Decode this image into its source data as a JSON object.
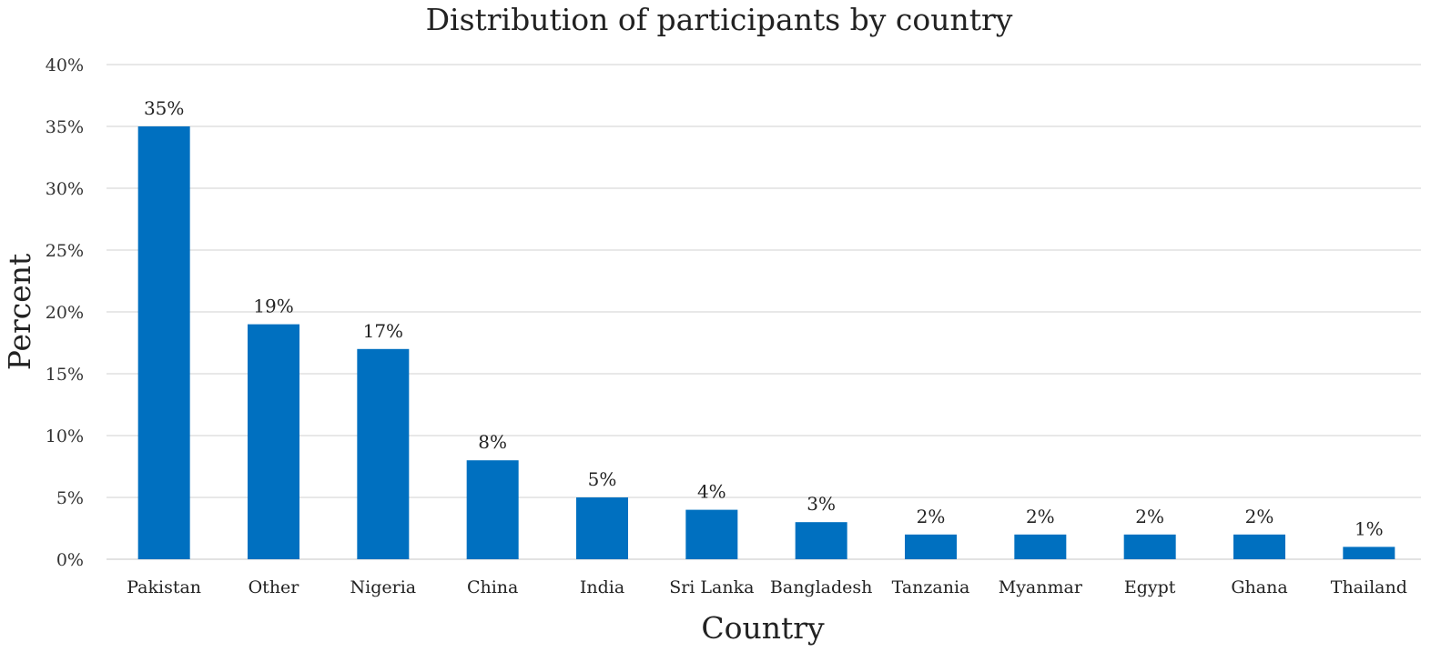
{
  "chart_data": {
    "type": "bar",
    "title": "Distribution of participants by country",
    "xlabel": "Country",
    "ylabel": "Percent",
    "categories": [
      "Pakistan",
      "Other",
      "Nigeria",
      "China",
      "India",
      "Sri Lanka",
      "Bangladesh",
      "Tanzania",
      "Myanmar",
      "Egypt",
      "Ghana",
      "Thailand"
    ],
    "values": [
      35,
      19,
      17,
      8,
      5,
      4,
      3,
      2,
      2,
      2,
      2,
      1
    ],
    "data_labels": [
      "35%",
      "19%",
      "17%",
      "8%",
      "5%",
      "4%",
      "3%",
      "2%",
      "2%",
      "2%",
      "2%",
      "1%"
    ],
    "ylim": [
      0,
      40
    ],
    "yticks": [
      0,
      5,
      10,
      15,
      20,
      25,
      30,
      35,
      40
    ],
    "ytick_labels": [
      "0%",
      "5%",
      "10%",
      "15%",
      "20%",
      "25%",
      "30%",
      "35%",
      "40%"
    ],
    "grid": true,
    "legend": "none",
    "colors": {
      "bar": "#0070c0"
    }
  }
}
